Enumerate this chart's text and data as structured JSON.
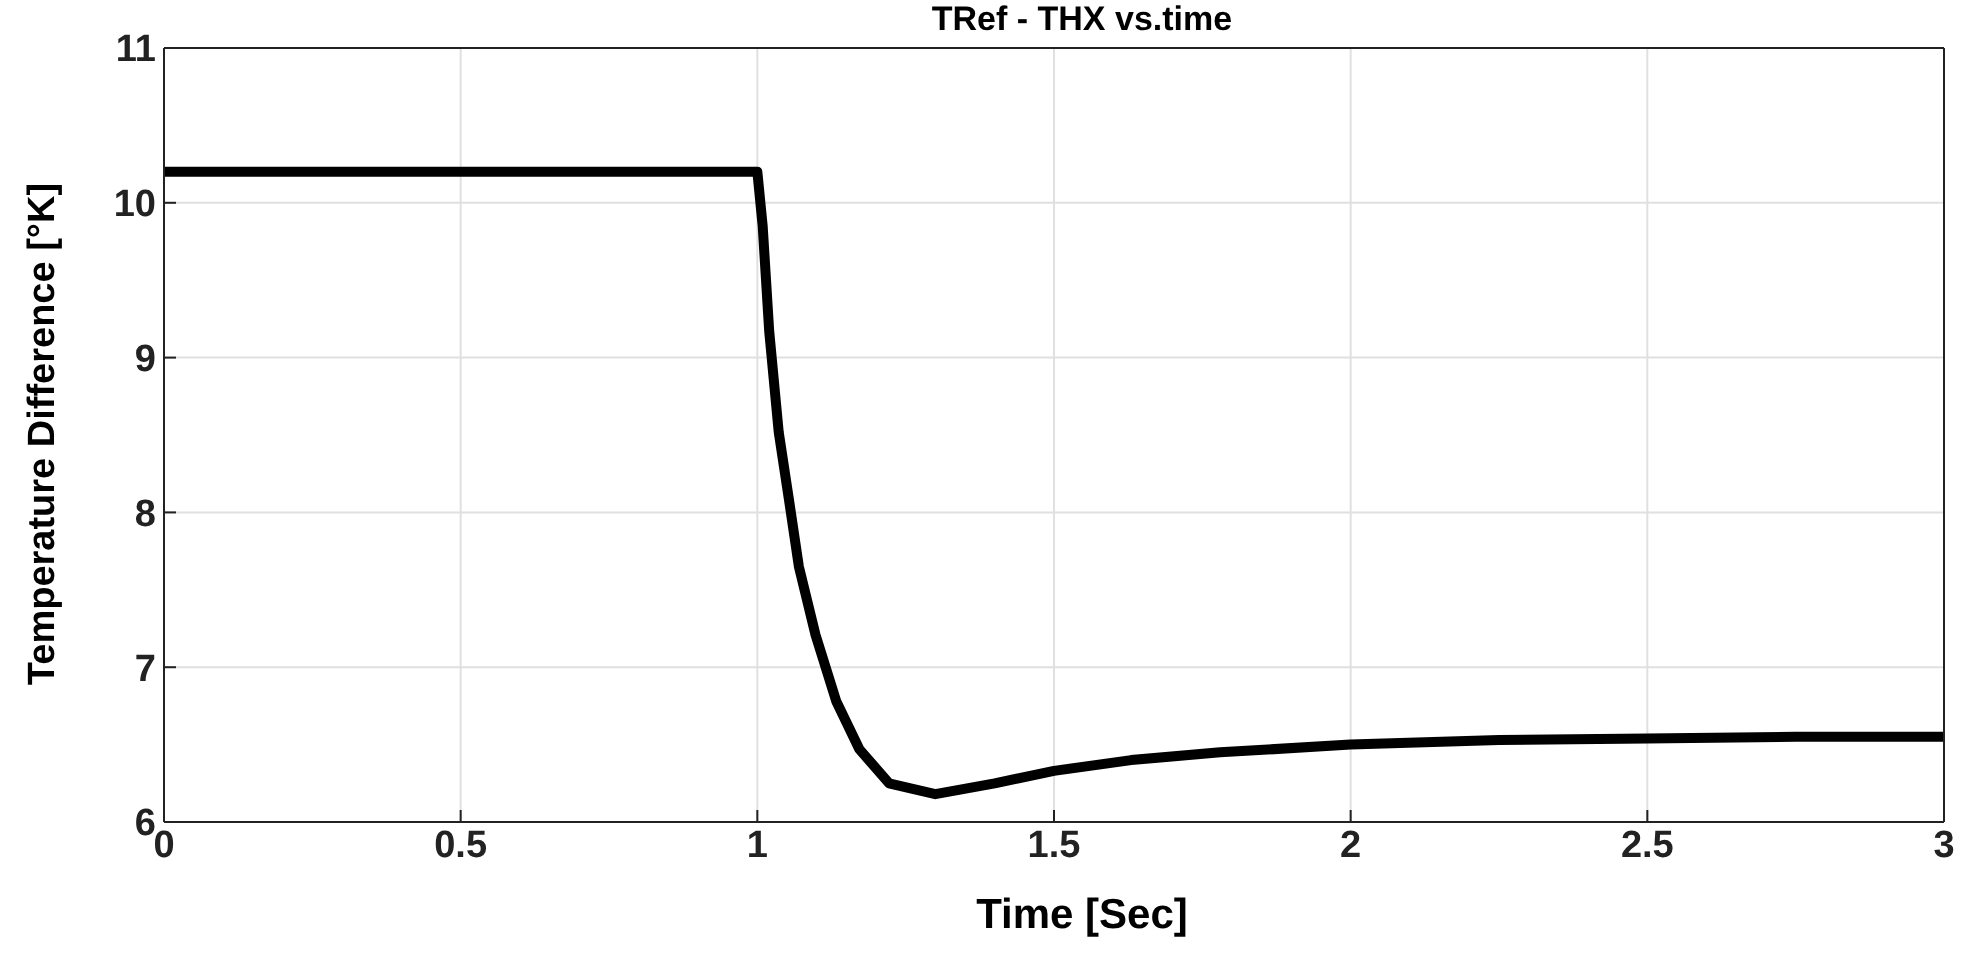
{
  "chart_data": {
    "type": "line",
    "title": "TRef - THX vs.time",
    "xlabel": "Time  [Sec]",
    "ylabel": "Temperature Difference [°K]",
    "series": [
      {
        "color": "#000000",
        "x": [
          0,
          0.5,
          1,
          1.009,
          1.02,
          1.036,
          1.053,
          1.07,
          1.098,
          1.133,
          1.172,
          1.222,
          1.3,
          1.4,
          1.5,
          1.63,
          1.78,
          2,
          2.25,
          2.5,
          2.75,
          3
        ],
        "values": [
          10.2,
          10.2,
          10.2,
          9.85,
          9.17,
          8.52,
          8.09,
          7.65,
          7.21,
          6.78,
          6.47,
          6.25,
          6.18,
          6.25,
          6.33,
          6.4,
          6.45,
          6.5,
          6.53,
          6.54,
          6.55,
          6.55
        ]
      }
    ],
    "xlim": [
      0,
      3
    ],
    "xticks": [
      0,
      {
        "value": 0.5,
        "label": "0.5"
      },
      1,
      {
        "value": 1.5,
        "label": "1.5"
      },
      2,
      {
        "value": 2.5,
        "label": "2.5"
      },
      3
    ],
    "ylim": [
      6,
      11
    ],
    "yticks": [
      6,
      7,
      8,
      9,
      10,
      11
    ],
    "grid": true,
    "marker": "none",
    "line_style": "solid"
  }
}
